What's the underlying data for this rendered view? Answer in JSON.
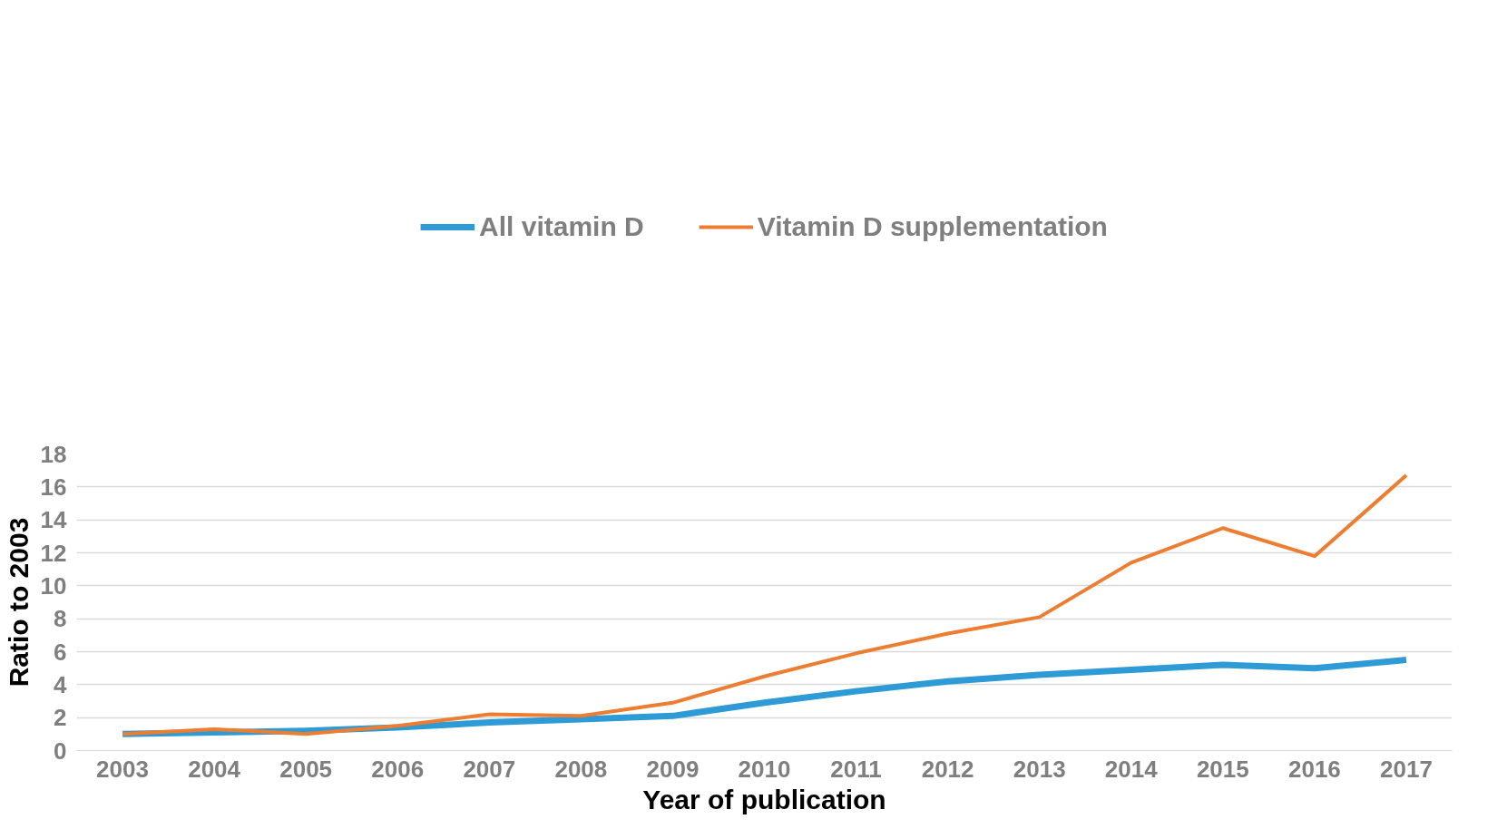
{
  "chart_data": {
    "type": "line",
    "xlabel": "Year of publication",
    "ylabel": "Ratio to 2003",
    "categories": [
      "2003",
      "2004",
      "2005",
      "2006",
      "2007",
      "2008",
      "2009",
      "2010",
      "2011",
      "2012",
      "2013",
      "2014",
      "2015",
      "2016",
      "2017"
    ],
    "series": [
      {
        "name": "All vitamin D",
        "color": "#2e9bd6",
        "values": [
          1.0,
          1.1,
          1.2,
          1.4,
          1.7,
          1.9,
          2.1,
          2.9,
          3.6,
          4.2,
          4.6,
          4.9,
          5.2,
          5.0,
          5.5
        ]
      },
      {
        "name": "Vitamin D supplementation",
        "color": "#ed7d31",
        "values": [
          1.0,
          1.3,
          1.0,
          1.5,
          2.2,
          2.1,
          2.9,
          4.5,
          5.9,
          7.1,
          8.1,
          11.4,
          13.5,
          11.8,
          16.7
        ]
      }
    ],
    "ylim": [
      0,
      18
    ],
    "yticks": [
      0,
      2,
      4,
      6,
      8,
      10,
      12,
      14,
      16,
      18
    ],
    "grid": "y",
    "legend": "top",
    "marker": "none",
    "line_style": "solid"
  }
}
